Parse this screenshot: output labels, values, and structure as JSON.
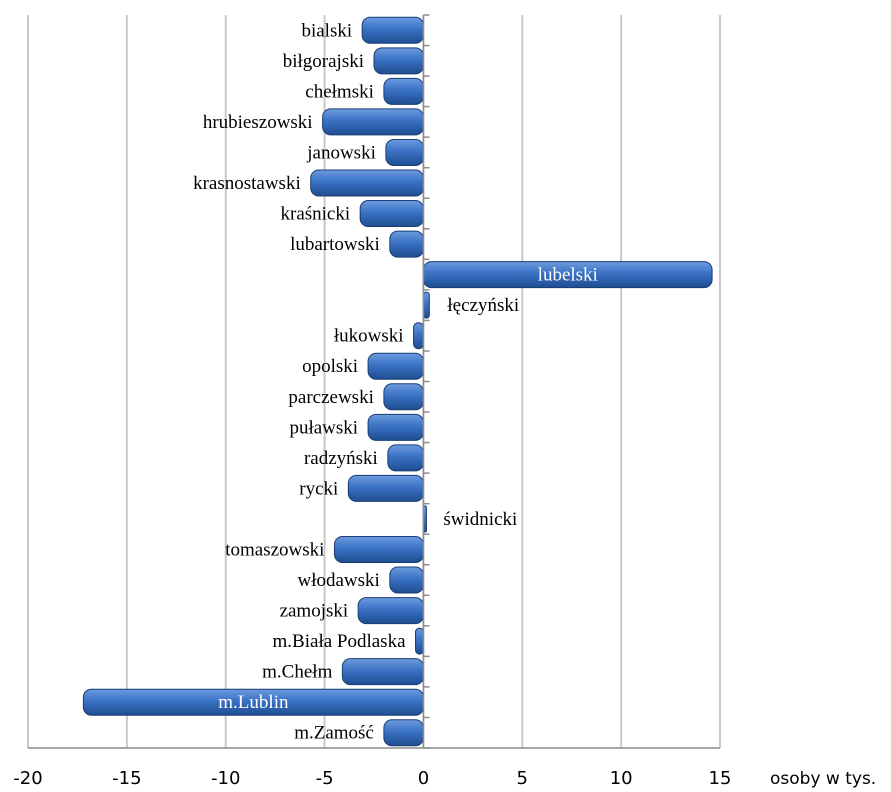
{
  "chart_data": {
    "type": "bar",
    "orientation": "horizontal",
    "categories": [
      "bialski",
      "biłgorajski",
      "chełmski",
      "hrubieszowski",
      "janowski",
      "krasnostawski",
      "kraśnicki",
      "lubartowski",
      "lubelski",
      "łęczyński",
      "łukowski",
      "opolski",
      "parczewski",
      "puławski",
      "radzyński",
      "rycki",
      "świdnicki",
      "tomaszowski",
      "włodawski",
      "zamojski",
      "m.Biała Podlaska",
      "m.Chełm",
      "m.Lublin",
      "m.Zamość"
    ],
    "values": [
      -3.1,
      -2.5,
      -2.0,
      -5.1,
      -1.9,
      -5.7,
      -3.2,
      -1.7,
      14.6,
      0.3,
      -0.5,
      -2.8,
      -2.0,
      -2.8,
      -1.8,
      -3.8,
      0.1,
      -4.5,
      -1.7,
      -3.3,
      -0.4,
      -4.1,
      -17.2,
      -2.0
    ],
    "x_ticks": [
      "-20",
      "-15",
      "-10",
      "-5",
      "0",
      "5",
      "10",
      "15"
    ],
    "xlim": [
      -20,
      15
    ],
    "unit_label": "osoby w tys.",
    "grid": true,
    "bar_color": "#3a72c4"
  }
}
